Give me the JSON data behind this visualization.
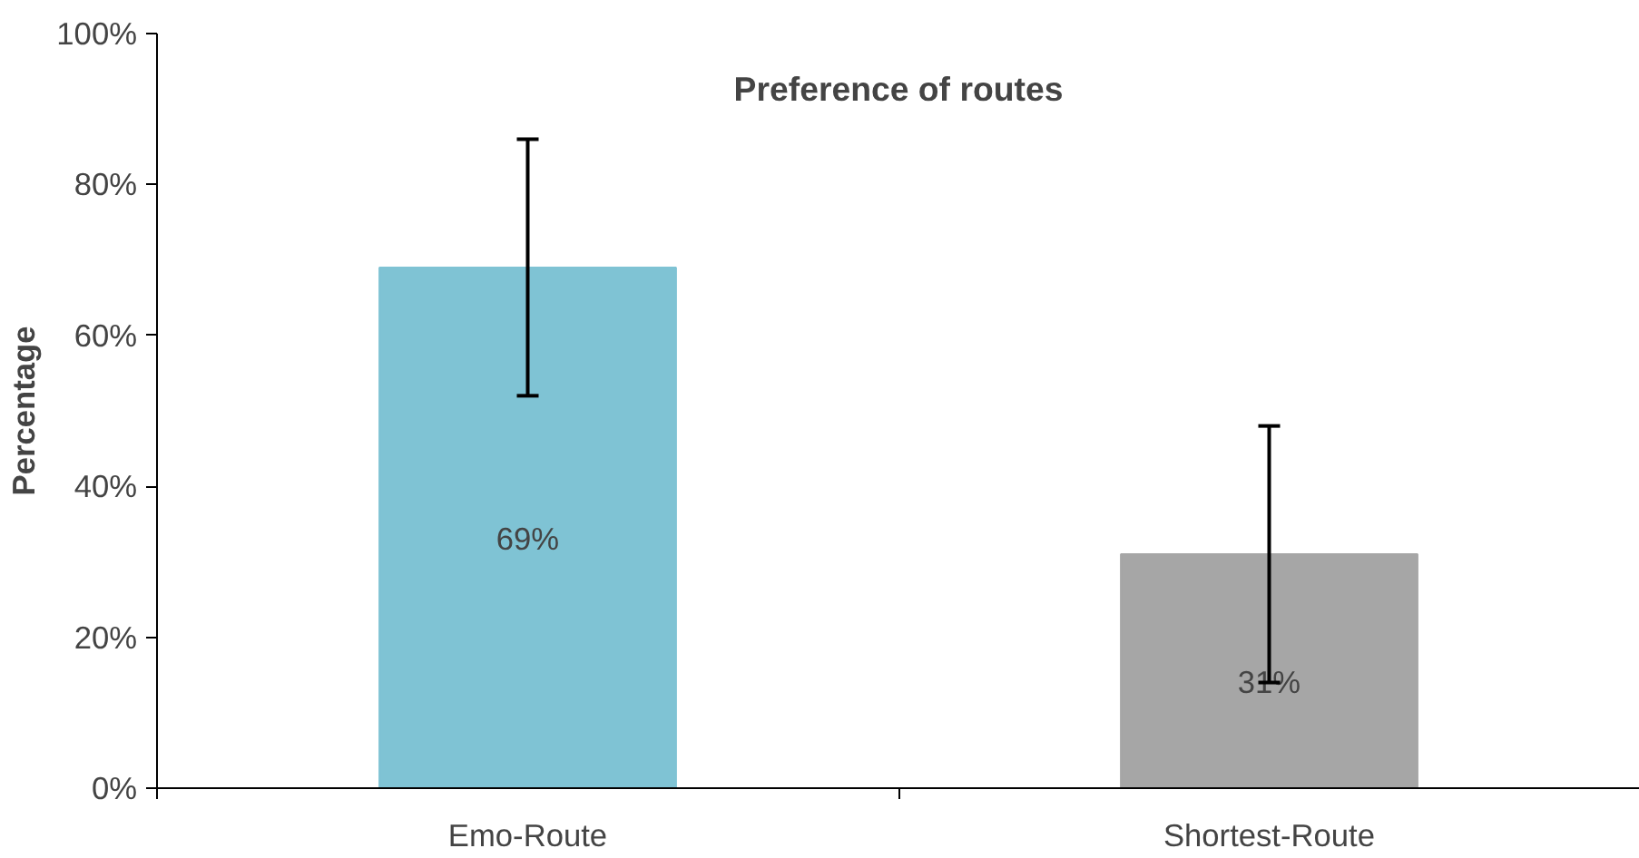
{
  "chart_data": {
    "type": "bar",
    "title": "Preference of routes",
    "ylabel": "Percentage",
    "categories": [
      "Emo-Route",
      "Shortest-Route"
    ],
    "values": [
      69,
      31
    ],
    "colors": [
      "#7fc3d4",
      "#a6a6a6"
    ],
    "errors": [
      17,
      17
    ],
    "value_labels": [
      "69%",
      "31%"
    ],
    "ylim": [
      0,
      100
    ],
    "yticks": [
      {
        "value": 0,
        "label": "0%"
      },
      {
        "value": 20,
        "label": "20%"
      },
      {
        "value": 40,
        "label": "40%"
      },
      {
        "value": 60,
        "label": "60%"
      },
      {
        "value": 80,
        "label": "80%"
      },
      {
        "value": 100,
        "label": "100%"
      }
    ],
    "grid": false
  }
}
